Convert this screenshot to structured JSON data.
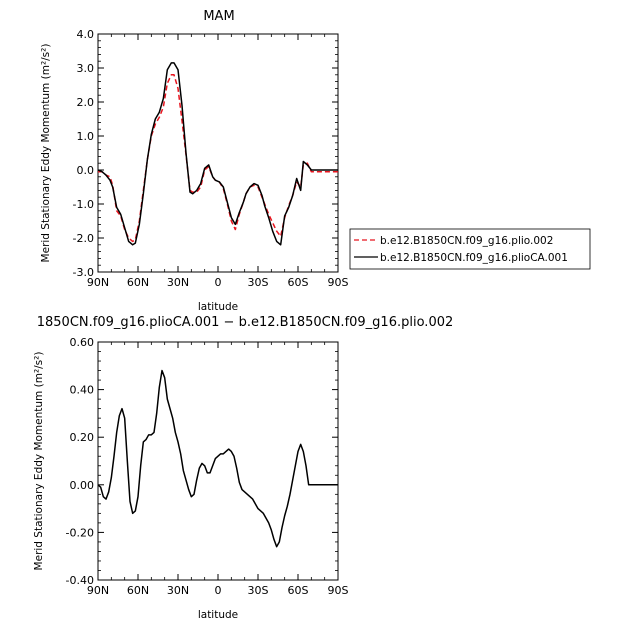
{
  "chart_data": [
    {
      "type": "line",
      "title": "MAM",
      "xlabel": "latitude",
      "ylabel": "Merid Stationary Eddy Momentum (m²/s²)",
      "xlim": [
        90,
        -90
      ],
      "ylim": [
        -3.0,
        4.0
      ],
      "x_ticks": [
        "90N",
        "60N",
        "30N",
        "0",
        "30S",
        "60S",
        "90S"
      ],
      "y_ticks": [
        "-3.0",
        "-2.0",
        "-1.0",
        "0.0",
        "1.0",
        "2.0",
        "3.0",
        "4.0"
      ],
      "grid": false,
      "legend_position": "right",
      "series": [
        {
          "name": "b.e12.B1850CN.f09_g16.plio.002",
          "color": "#e8141e",
          "style": "dashed",
          "x": [
            90,
            87,
            84,
            81,
            79,
            76,
            73,
            70,
            67,
            64,
            62,
            59,
            56,
            53,
            50,
            47,
            44,
            41,
            38,
            35,
            33,
            30,
            27,
            24,
            21,
            19,
            16,
            13,
            10,
            7,
            4,
            2,
            -1,
            -4,
            -7,
            -10,
            -13,
            -16,
            -19,
            -21,
            -24,
            -27,
            -30,
            -33,
            -35,
            -38,
            -41,
            -44,
            -47,
            -50,
            -53,
            -56,
            -59,
            -62,
            -64,
            -67,
            -70,
            -73,
            -76,
            -79,
            -81,
            -84,
            -87,
            -90
          ],
          "values": [
            -0.05,
            -0.05,
            -0.15,
            -0.2,
            -0.45,
            -1.2,
            -1.35,
            -1.75,
            -2.0,
            -2.1,
            -2.05,
            -1.5,
            -0.6,
            0.3,
            1.0,
            1.35,
            1.55,
            1.85,
            2.55,
            2.8,
            2.8,
            2.4,
            1.45,
            0.45,
            -0.6,
            -0.65,
            -0.65,
            -0.5,
            0.0,
            0.1,
            -0.2,
            -0.3,
            -0.35,
            -0.55,
            -1.0,
            -1.5,
            -1.75,
            -1.3,
            -0.95,
            -0.7,
            -0.5,
            -0.45,
            -0.5,
            -0.8,
            -1.0,
            -1.3,
            -1.55,
            -1.8,
            -1.95,
            -1.4,
            -1.05,
            -0.75,
            -0.35,
            -0.5,
            0.15,
            0.2,
            -0.05,
            -0.05,
            -0.05,
            -0.05,
            -0.05,
            -0.05,
            -0.05,
            -0.05
          ]
        },
        {
          "name": "b.e12.B1850CN.f09_g16.plioCA.001",
          "color": "#000000",
          "style": "solid",
          "x": [
            90,
            87,
            84,
            81,
            79,
            76,
            73,
            70,
            67,
            64,
            62,
            59,
            56,
            53,
            50,
            47,
            44,
            41,
            38,
            35,
            33,
            30,
            27,
            24,
            21,
            19,
            16,
            13,
            10,
            7,
            4,
            2,
            -1,
            -4,
            -7,
            -10,
            -13,
            -16,
            -19,
            -21,
            -24,
            -27,
            -30,
            -33,
            -35,
            -38,
            -41,
            -44,
            -47,
            -50,
            -53,
            -56,
            -59,
            -62,
            -64,
            -67,
            -70,
            -73,
            -76,
            -79,
            -81,
            -84,
            -87,
            -90
          ],
          "values": [
            0.0,
            -0.05,
            -0.15,
            -0.3,
            -0.5,
            -1.1,
            -1.3,
            -1.7,
            -2.1,
            -2.2,
            -2.15,
            -1.6,
            -0.7,
            0.3,
            1.05,
            1.5,
            1.7,
            2.1,
            2.95,
            3.15,
            3.15,
            2.95,
            1.9,
            0.5,
            -0.65,
            -0.7,
            -0.6,
            -0.4,
            0.05,
            0.15,
            -0.2,
            -0.3,
            -0.35,
            -0.5,
            -0.95,
            -1.4,
            -1.6,
            -1.25,
            -0.95,
            -0.7,
            -0.5,
            -0.4,
            -0.45,
            -0.75,
            -1.05,
            -1.4,
            -1.8,
            -2.1,
            -2.2,
            -1.35,
            -1.1,
            -0.75,
            -0.25,
            -0.6,
            0.25,
            0.15,
            0.0,
            0.0,
            0.0,
            0.0,
            0.0,
            0.0,
            0.0,
            0.0
          ]
        }
      ]
    },
    {
      "type": "line",
      "title": "1850CN.f09_g16.plioCA.001 − b.e12.B1850CN.f09_g16.plio.002",
      "xlabel": "latitude",
      "ylabel": "Merid Stationary Eddy Momentum (m²/s²)",
      "xlim": [
        90,
        -90
      ],
      "ylim": [
        -0.4,
        0.6
      ],
      "x_ticks": [
        "90N",
        "60N",
        "30N",
        "0",
        "30S",
        "60S",
        "90S"
      ],
      "y_ticks": [
        "-0.40",
        "-0.20",
        "0.00",
        "0.20",
        "0.40",
        "0.60"
      ],
      "grid": false,
      "series": [
        {
          "color": "#000000",
          "style": "solid",
          "x": [
            90,
            88,
            86,
            84,
            82,
            80,
            78,
            76,
            74,
            72,
            70,
            68,
            66,
            64,
            62,
            60,
            58,
            56,
            54,
            52,
            50,
            48,
            46,
            44,
            42,
            40,
            38,
            36,
            34,
            32,
            30,
            28,
            26,
            24,
            22,
            20,
            18,
            16,
            14,
            12,
            10,
            8,
            6,
            4,
            2,
            0,
            -2,
            -4,
            -6,
            -8,
            -10,
            -12,
            -14,
            -16,
            -18,
            -20,
            -22,
            -24,
            -26,
            -28,
            -30,
            -32,
            -34,
            -36,
            -38,
            -40,
            -42,
            -44,
            -46,
            -48,
            -50,
            -52,
            -54,
            -56,
            -58,
            -60,
            -62,
            -64,
            -66,
            -68,
            -70,
            -72,
            -74,
            -76,
            -78,
            -80,
            -82,
            -84,
            -86,
            -88,
            -90
          ],
          "values": [
            0.0,
            -0.01,
            -0.05,
            -0.06,
            -0.03,
            0.03,
            0.12,
            0.22,
            0.29,
            0.32,
            0.28,
            0.1,
            -0.07,
            -0.12,
            -0.11,
            -0.05,
            0.08,
            0.18,
            0.19,
            0.21,
            0.21,
            0.22,
            0.3,
            0.41,
            0.48,
            0.45,
            0.36,
            0.32,
            0.28,
            0.22,
            0.18,
            0.13,
            0.06,
            0.02,
            -0.02,
            -0.05,
            -0.04,
            0.02,
            0.07,
            0.09,
            0.08,
            0.05,
            0.05,
            0.08,
            0.11,
            0.12,
            0.13,
            0.13,
            0.14,
            0.15,
            0.14,
            0.12,
            0.07,
            0.01,
            -0.02,
            -0.03,
            -0.04,
            -0.05,
            -0.06,
            -0.08,
            -0.1,
            -0.11,
            -0.12,
            -0.14,
            -0.16,
            -0.19,
            -0.23,
            -0.26,
            -0.24,
            -0.18,
            -0.13,
            -0.09,
            -0.04,
            0.02,
            0.08,
            0.14,
            0.17,
            0.14,
            0.08,
            0.0,
            0.0,
            0.0,
            0.0,
            0.0,
            0.0,
            0.0,
            0.0,
            0.0,
            0.0,
            0.0,
            0.0
          ]
        }
      ]
    }
  ]
}
